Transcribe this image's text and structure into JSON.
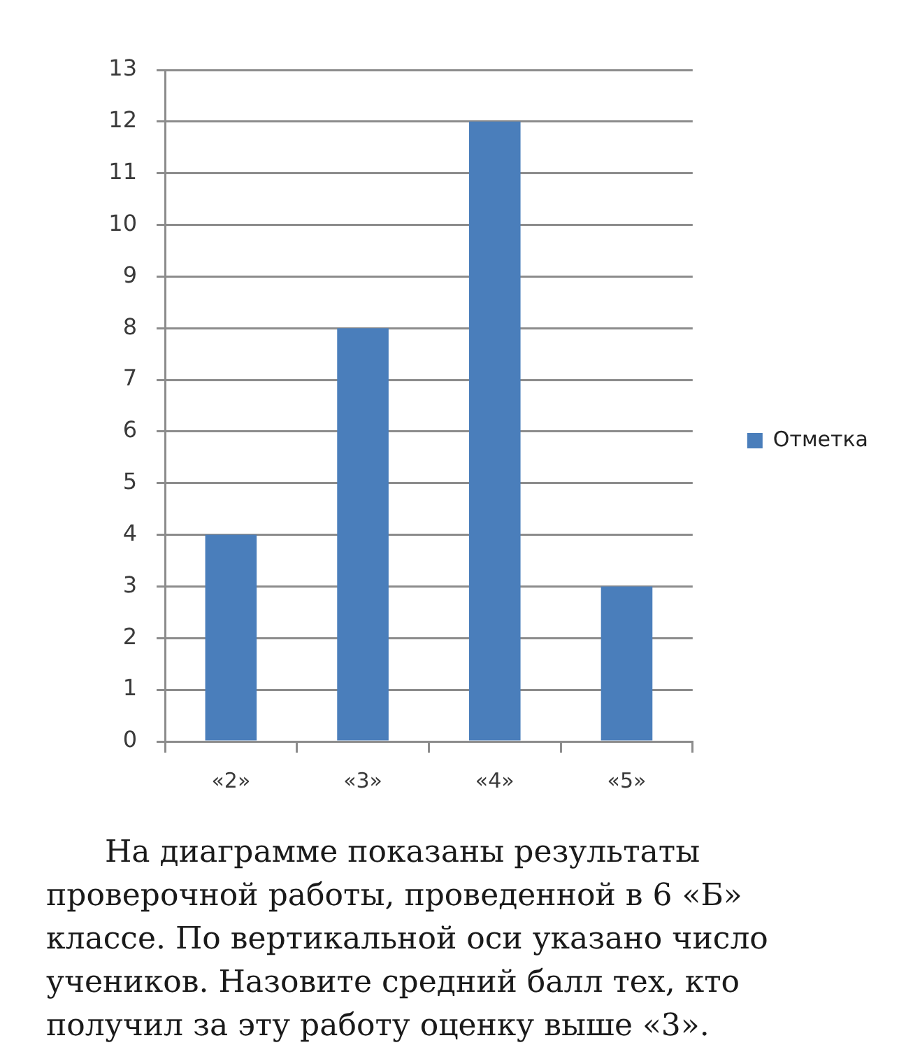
{
  "chart_data": {
    "type": "bar",
    "categories": [
      "«2»",
      "«3»",
      "«4»",
      "«5»"
    ],
    "series": [
      {
        "name": "Отметка",
        "color": "#4a7ebb",
        "values": [
          4,
          8,
          12,
          3
        ]
      }
    ],
    "ylim": [
      0,
      13
    ],
    "yticks": [
      0,
      1,
      2,
      3,
      4,
      5,
      6,
      7,
      8,
      9,
      10,
      11,
      12,
      13
    ],
    "grid": "y",
    "legend": "right",
    "annotations": [
      "На диаграмме показаны результаты проверочной работы, проведенной в 6 «Б» классе. По вертикальной оси указано число учеников. Назовите средний балл тех, кто получил за эту работу оценку выше «3»."
    ]
  }
}
